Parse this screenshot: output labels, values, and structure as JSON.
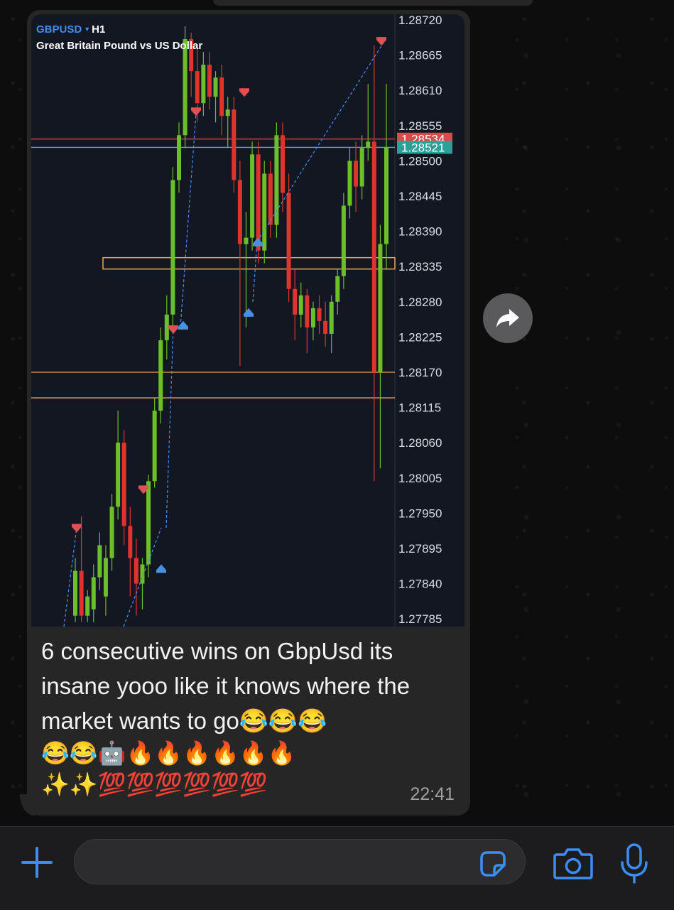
{
  "chart_header": {
    "symbol": "GBPUSD",
    "caret": "▼",
    "timeframe": "H1",
    "description": "Great Britain Pound vs US Dollar"
  },
  "chart_data": {
    "type": "candlestick",
    "y_axis_ticks": [
      "1.28720",
      "1.28665",
      "1.28610",
      "1.28555",
      "1.28500",
      "1.28445",
      "1.28390",
      "1.28335",
      "1.28280",
      "1.28225",
      "1.28170",
      "1.28115",
      "1.28060",
      "1.28005",
      "1.27950",
      "1.27895",
      "1.27840",
      "1.27785"
    ],
    "ylim": [
      1.2778,
      1.2873
    ],
    "price_labels": [
      {
        "value": "1.28534",
        "color": "#d94a4a"
      },
      {
        "value": "1.28521",
        "color": "#2aa198"
      }
    ],
    "candles": [
      {
        "o": 1.2779,
        "h": 1.2788,
        "l": 1.2778,
        "c": 1.2786,
        "dir": "up"
      },
      {
        "o": 1.2786,
        "h": 1.27945,
        "l": 1.2778,
        "c": 1.2779,
        "dir": "down"
      },
      {
        "o": 1.2779,
        "h": 1.2783,
        "l": 1.2778,
        "c": 1.2782,
        "dir": "up"
      },
      {
        "o": 1.278,
        "h": 1.2787,
        "l": 1.2778,
        "c": 1.2785,
        "dir": "up"
      },
      {
        "o": 1.2785,
        "h": 1.2792,
        "l": 1.2783,
        "c": 1.279,
        "dir": "up"
      },
      {
        "o": 1.2782,
        "h": 1.279,
        "l": 1.2779,
        "c": 1.2788,
        "dir": "up"
      },
      {
        "o": 1.2788,
        "h": 1.2798,
        "l": 1.2786,
        "c": 1.2796,
        "dir": "up"
      },
      {
        "o": 1.2796,
        "h": 1.2811,
        "l": 1.2794,
        "c": 1.2806,
        "dir": "up"
      },
      {
        "o": 1.2806,
        "h": 1.2808,
        "l": 1.279,
        "c": 1.2793,
        "dir": "down"
      },
      {
        "o": 1.2793,
        "h": 1.2796,
        "l": 1.2782,
        "c": 1.2788,
        "dir": "down"
      },
      {
        "o": 1.2788,
        "h": 1.2791,
        "l": 1.2779,
        "c": 1.2784,
        "dir": "down"
      },
      {
        "o": 1.2784,
        "h": 1.2788,
        "l": 1.278,
        "c": 1.2787,
        "dir": "up"
      },
      {
        "o": 1.2787,
        "h": 1.2801,
        "l": 1.2785,
        "c": 1.28,
        "dir": "up"
      },
      {
        "o": 1.28,
        "h": 1.2813,
        "l": 1.2799,
        "c": 1.2811,
        "dir": "up"
      },
      {
        "o": 1.2811,
        "h": 1.2824,
        "l": 1.2809,
        "c": 1.2822,
        "dir": "up"
      },
      {
        "o": 1.2822,
        "h": 1.2829,
        "l": 1.2819,
        "c": 1.2826,
        "dir": "up"
      },
      {
        "o": 1.2826,
        "h": 1.2849,
        "l": 1.2824,
        "c": 1.2847,
        "dir": "up"
      },
      {
        "o": 1.2847,
        "h": 1.2856,
        "l": 1.2845,
        "c": 1.2854,
        "dir": "up"
      },
      {
        "o": 1.2854,
        "h": 1.2871,
        "l": 1.2852,
        "c": 1.2869,
        "dir": "up"
      },
      {
        "o": 1.2869,
        "h": 1.287,
        "l": 1.286,
        "c": 1.2864,
        "dir": "down"
      },
      {
        "o": 1.2864,
        "h": 1.2868,
        "l": 1.2856,
        "c": 1.2859,
        "dir": "down"
      },
      {
        "o": 1.2859,
        "h": 1.2867,
        "l": 1.2857,
        "c": 1.2865,
        "dir": "up"
      },
      {
        "o": 1.2865,
        "h": 1.2867,
        "l": 1.2858,
        "c": 1.286,
        "dir": "down"
      },
      {
        "o": 1.286,
        "h": 1.2864,
        "l": 1.2856,
        "c": 1.2863,
        "dir": "up"
      },
      {
        "o": 1.2863,
        "h": 1.2865,
        "l": 1.2854,
        "c": 1.2857,
        "dir": "down"
      },
      {
        "o": 1.2857,
        "h": 1.286,
        "l": 1.2852,
        "c": 1.2858,
        "dir": "up"
      },
      {
        "o": 1.2858,
        "h": 1.286,
        "l": 1.2845,
        "c": 1.2847,
        "dir": "down"
      },
      {
        "o": 1.2847,
        "h": 1.285,
        "l": 1.2818,
        "c": 1.2837,
        "dir": "down"
      },
      {
        "o": 1.2837,
        "h": 1.2842,
        "l": 1.2824,
        "c": 1.2838,
        "dir": "up"
      },
      {
        "o": 1.2838,
        "h": 1.2853,
        "l": 1.2836,
        "c": 1.2851,
        "dir": "up"
      },
      {
        "o": 1.2851,
        "h": 1.2853,
        "l": 1.2834,
        "c": 1.2836,
        "dir": "down"
      },
      {
        "o": 1.2836,
        "h": 1.285,
        "l": 1.2834,
        "c": 1.2848,
        "dir": "up"
      },
      {
        "o": 1.2848,
        "h": 1.285,
        "l": 1.2838,
        "c": 1.284,
        "dir": "down"
      },
      {
        "o": 1.284,
        "h": 1.2856,
        "l": 1.2838,
        "c": 1.2854,
        "dir": "up"
      },
      {
        "o": 1.2854,
        "h": 1.2856,
        "l": 1.2842,
        "c": 1.2845,
        "dir": "down"
      },
      {
        "o": 1.2845,
        "h": 1.2848,
        "l": 1.2828,
        "c": 1.283,
        "dir": "down"
      },
      {
        "o": 1.283,
        "h": 1.2833,
        "l": 1.2822,
        "c": 1.2826,
        "dir": "down"
      },
      {
        "o": 1.2826,
        "h": 1.2831,
        "l": 1.2824,
        "c": 1.2829,
        "dir": "up"
      },
      {
        "o": 1.2829,
        "h": 1.283,
        "l": 1.282,
        "c": 1.2824,
        "dir": "down"
      },
      {
        "o": 1.2824,
        "h": 1.2828,
        "l": 1.2822,
        "c": 1.2827,
        "dir": "up"
      },
      {
        "o": 1.2827,
        "h": 1.2829,
        "l": 1.2823,
        "c": 1.2825,
        "dir": "down"
      },
      {
        "o": 1.2825,
        "h": 1.2828,
        "l": 1.2821,
        "c": 1.2823,
        "dir": "down"
      },
      {
        "o": 1.2823,
        "h": 1.2829,
        "l": 1.282,
        "c": 1.2828,
        "dir": "up"
      },
      {
        "o": 1.2828,
        "h": 1.2833,
        "l": 1.2826,
        "c": 1.2832,
        "dir": "up"
      },
      {
        "o": 1.2832,
        "h": 1.2845,
        "l": 1.283,
        "c": 1.2843,
        "dir": "up"
      },
      {
        "o": 1.2843,
        "h": 1.2852,
        "l": 1.2841,
        "c": 1.285,
        "dir": "up"
      },
      {
        "o": 1.285,
        "h": 1.2853,
        "l": 1.2842,
        "c": 1.2846,
        "dir": "down"
      },
      {
        "o": 1.2846,
        "h": 1.2854,
        "l": 1.2844,
        "c": 1.2852,
        "dir": "up"
      },
      {
        "o": 1.2852,
        "h": 1.2862,
        "l": 1.285,
        "c": 1.2853,
        "dir": "up"
      },
      {
        "o": 1.2853,
        "h": 1.2868,
        "l": 1.28,
        "c": 1.2817,
        "dir": "down"
      },
      {
        "o": 1.2817,
        "h": 1.284,
        "l": 1.2802,
        "c": 1.2837,
        "dir": "up"
      },
      {
        "o": 1.2837,
        "h": 1.2862,
        "l": 1.2833,
        "c": 1.28521,
        "dir": "up"
      }
    ],
    "horizontal_lines": [
      {
        "value": 1.28534,
        "color": "#d94a4a"
      },
      {
        "value": 1.28521,
        "color": "#3fb7c4"
      },
      {
        "value": 1.2817,
        "color": "#e8a35a"
      },
      {
        "value": 1.2813,
        "color": "#e8a35a"
      }
    ],
    "zone": {
      "from": 1.2832,
      "to": 1.2834,
      "color": "#e8a35a"
    },
    "sell_arrows": [
      1.2792,
      1.2798,
      1.2823,
      1.2857,
      1.286,
      1.2868
    ],
    "buy_arrows": [
      1.2787,
      1.2825,
      1.2827,
      1.2838
    ]
  },
  "message": {
    "text": "6 consecutive wins on GbpUsd its insane yooo like it knows where the market wants to go😂😂😂",
    "emoji_line_1": "😂😂🤖🔥🔥🔥🔥🔥🔥",
    "emoji_line_2": "✨✨💯💯💯💯💯💯",
    "time": "22:41"
  },
  "colors": {
    "bubble": "#262627",
    "accent_blue": "#3a8ef6",
    "candle_up": "#6bbf2a",
    "candle_down": "#e0332e"
  }
}
